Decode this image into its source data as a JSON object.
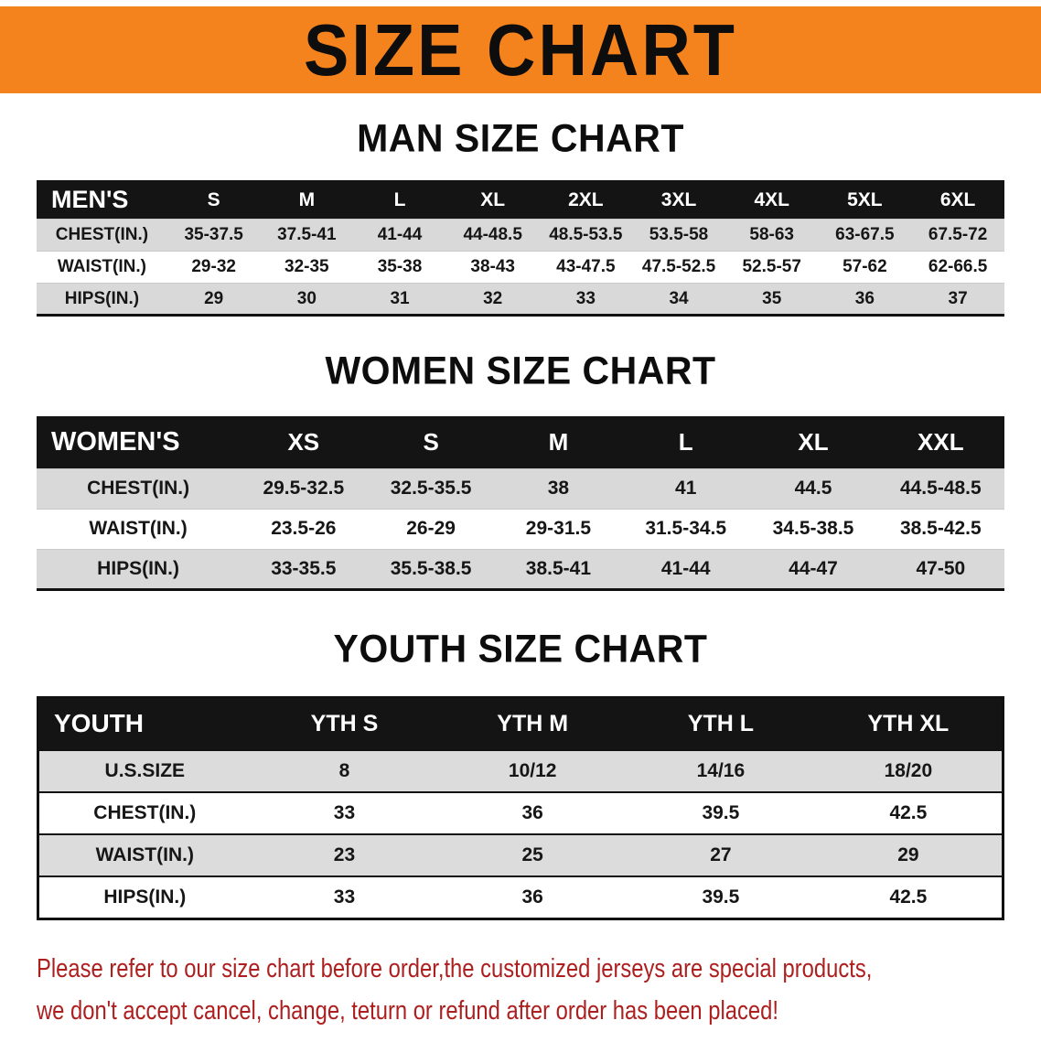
{
  "banner": {
    "title": "SIZE CHART"
  },
  "colors": {
    "banner_bg": "#F5831D",
    "table_header_bg": "#141414",
    "stripe": "#D9D9D9",
    "notice_text": "#AD1F1F"
  },
  "sections": [
    {
      "heading": "MAN SIZE CHART",
      "name": "men-size-table",
      "style": "men",
      "header_label": "MEN'S",
      "columns": [
        "S",
        "M",
        "L",
        "XL",
        "2XL",
        "3XL",
        "4XL",
        "5XL",
        "6XL"
      ],
      "rows": [
        {
          "label": "CHEST(IN.)",
          "values": [
            "35-37.5",
            "37.5-41",
            "41-44",
            "44-48.5",
            "48.5-53.5",
            "53.5-58",
            "58-63",
            "63-67.5",
            "67.5-72"
          ]
        },
        {
          "label": "WAIST(IN.)",
          "values": [
            "29-32",
            "32-35",
            "35-38",
            "38-43",
            "43-47.5",
            "47.5-52.5",
            "52.5-57",
            "57-62",
            "62-66.5"
          ]
        },
        {
          "label": "HIPS(IN.)",
          "values": [
            "29",
            "30",
            "31",
            "32",
            "33",
            "34",
            "35",
            "36",
            "37"
          ]
        }
      ]
    },
    {
      "heading": "WOMEN SIZE CHART",
      "name": "women-size-table",
      "style": "women",
      "header_label": "WOMEN'S",
      "columns": [
        "XS",
        "S",
        "M",
        "L",
        "XL",
        "XXL"
      ],
      "rows": [
        {
          "label": "CHEST(IN.)",
          "values": [
            "29.5-32.5",
            "32.5-35.5",
            "38",
            "41",
            "44.5",
            "44.5-48.5"
          ]
        },
        {
          "label": "WAIST(IN.)",
          "values": [
            "23.5-26",
            "26-29",
            "29-31.5",
            "31.5-34.5",
            "34.5-38.5",
            "38.5-42.5"
          ]
        },
        {
          "label": "HIPS(IN.)",
          "values": [
            "33-35.5",
            "35.5-38.5",
            "38.5-41",
            "41-44",
            "44-47",
            "47-50"
          ]
        }
      ]
    },
    {
      "heading": "YOUTH SIZE CHART",
      "name": "youth-size-table",
      "style": "youth",
      "header_label": "YOUTH",
      "columns": [
        "YTH S",
        "YTH M",
        "YTH L",
        "YTH XL"
      ],
      "rows": [
        {
          "label": "U.S.SIZE",
          "values": [
            "8",
            "10/12",
            "14/16",
            "18/20"
          ]
        },
        {
          "label": "CHEST(IN.)",
          "values": [
            "33",
            "36",
            "39.5",
            "42.5"
          ]
        },
        {
          "label": "WAIST(IN.)",
          "values": [
            "23",
            "25",
            "27",
            "29"
          ]
        },
        {
          "label": "HIPS(IN.)",
          "values": [
            "33",
            "36",
            "39.5",
            "42.5"
          ]
        }
      ]
    }
  ],
  "footer": {
    "lines": [
      "Please refer to our size chart before order,the customized jerseys are special products,",
      "we don't accept cancel, change, teturn or refund after order has been placed!"
    ]
  }
}
